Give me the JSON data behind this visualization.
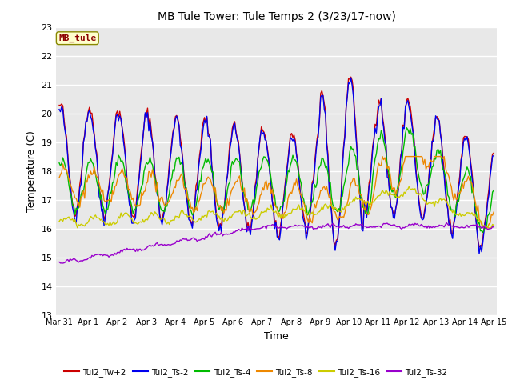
{
  "title": "MB Tule Tower: Tule Temps 2 (3/23/17-now)",
  "xlabel": "Time",
  "ylabel": "Temperature (C)",
  "ylim": [
    13.0,
    23.0
  ],
  "yticks": [
    13.0,
    14.0,
    15.0,
    16.0,
    17.0,
    18.0,
    19.0,
    20.0,
    21.0,
    22.0,
    23.0
  ],
  "bg_color": "#e8e8e8",
  "legend_label": "MB_tule",
  "xtick_positions": [
    0,
    1,
    2,
    3,
    4,
    5,
    6,
    7,
    8,
    9,
    10,
    11,
    12,
    13,
    14,
    15
  ],
  "xtick_labels": [
    "Mar 31",
    "Apr 1",
    "Apr 2",
    "Apr 3",
    "Apr 4",
    "Apr 5",
    "Apr 6",
    "Apr 7",
    "Apr 8",
    "Apr 9",
    "Apr 10",
    "Apr 11",
    "Apr 12",
    "Apr 13",
    "Apr 14",
    "Apr 15"
  ],
  "series_order": [
    "Tul2_Tw+2",
    "Tul2_Ts-2",
    "Tul2_Ts-4",
    "Tul2_Ts-8",
    "Tul2_Ts-16",
    "Tul2_Ts-32"
  ],
  "colors": {
    "Tul2_Tw+2": "#cc0000",
    "Tul2_Ts-2": "#0000ee",
    "Tul2_Ts-4": "#00bb00",
    "Tul2_Ts-8": "#ee8800",
    "Tul2_Ts-16": "#cccc00",
    "Tul2_Ts-32": "#9900cc"
  }
}
